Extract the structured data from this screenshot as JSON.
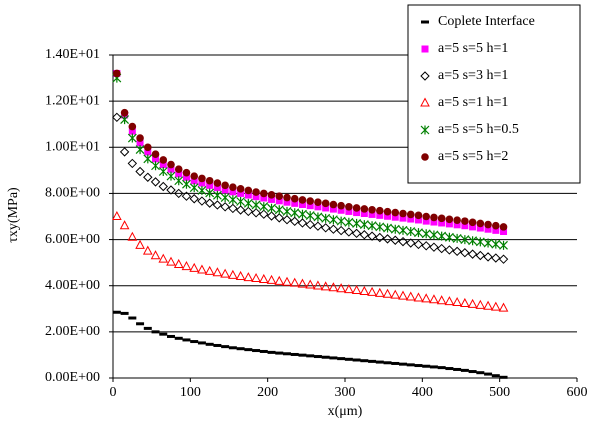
{
  "chart_data": {
    "type": "scatter",
    "y_label": "τxy(MPa)",
    "x_label": "x(μm)",
    "xlim": [
      0,
      600
    ],
    "xticks": [
      0,
      100,
      200,
      300,
      400,
      500,
      600
    ],
    "ylim": [
      0,
      14
    ],
    "yticks": [
      {
        "value": 0,
        "label": "0.00E+00"
      },
      {
        "value": 2,
        "label": "2.00E+00"
      },
      {
        "value": 4,
        "label": "4.00E+00"
      },
      {
        "value": 6,
        "label": "6.00E+00"
      },
      {
        "value": 8,
        "label": "8.00E+00"
      },
      {
        "value": 10,
        "label": "1.00E+01"
      },
      {
        "value": 12,
        "label": "1.20E+01"
      },
      {
        "value": 14,
        "label": "1.40E+01"
      }
    ],
    "grid": true,
    "legend": "top-right",
    "x": [
      5,
      15,
      25,
      35,
      45,
      55,
      65,
      75,
      85,
      95,
      105,
      115,
      125,
      135,
      145,
      155,
      165,
      175,
      185,
      195,
      205,
      215,
      225,
      235,
      245,
      255,
      265,
      275,
      285,
      295,
      305,
      315,
      325,
      335,
      345,
      355,
      365,
      375,
      385,
      395,
      405,
      415,
      425,
      435,
      445,
      455,
      465,
      475,
      485,
      495,
      505
    ],
    "series": [
      {
        "name": "Coplete Interface",
        "color": "#000000",
        "marker": "dash",
        "values": [
          2.85,
          2.8,
          2.6,
          2.35,
          2.15,
          2.0,
          1.9,
          1.8,
          1.72,
          1.65,
          1.58,
          1.52,
          1.46,
          1.41,
          1.36,
          1.31,
          1.27,
          1.23,
          1.19,
          1.15,
          1.11,
          1.08,
          1.05,
          1.02,
          0.99,
          0.96,
          0.93,
          0.9,
          0.87,
          0.84,
          0.81,
          0.78,
          0.75,
          0.72,
          0.69,
          0.66,
          0.63,
          0.6,
          0.57,
          0.54,
          0.51,
          0.48,
          0.45,
          0.41,
          0.37,
          0.33,
          0.28,
          0.23,
          0.17,
          0.1,
          0.03
        ]
      },
      {
        "name": "a=5 s=5 h=1",
        "color": "#ff00ff",
        "marker": "square",
        "values": [
          13.2,
          11.4,
          10.7,
          10.2,
          9.8,
          9.5,
          9.25,
          9.05,
          8.85,
          8.7,
          8.55,
          8.45,
          8.35,
          8.25,
          8.15,
          8.07,
          8.0,
          7.93,
          7.86,
          7.8,
          7.74,
          7.68,
          7.62,
          7.57,
          7.52,
          7.47,
          7.42,
          7.37,
          7.32,
          7.27,
          7.22,
          7.17,
          7.13,
          7.09,
          7.05,
          7.01,
          6.97,
          6.93,
          6.89,
          6.85,
          6.8,
          6.76,
          6.72,
          6.68,
          6.64,
          6.6,
          6.55,
          6.5,
          6.45,
          6.4,
          6.35
        ]
      },
      {
        "name": "a=5 s=3 h=1",
        "color": "#000000",
        "marker": "diamond",
        "values": [
          11.3,
          9.8,
          9.3,
          8.95,
          8.7,
          8.5,
          8.3,
          8.15,
          8.0,
          7.88,
          7.77,
          7.67,
          7.58,
          7.5,
          7.42,
          7.35,
          7.28,
          7.22,
          7.16,
          7.1,
          7.02,
          6.94,
          6.86,
          6.79,
          6.72,
          6.65,
          6.58,
          6.51,
          6.45,
          6.39,
          6.33,
          6.27,
          6.21,
          6.15,
          6.09,
          6.03,
          5.97,
          5.91,
          5.85,
          5.79,
          5.73,
          5.67,
          5.61,
          5.55,
          5.49,
          5.43,
          5.37,
          5.31,
          5.25,
          5.2,
          5.15
        ]
      },
      {
        "name": "a=5 s=1 h=1",
        "color": "#ff0000",
        "marker": "triangle",
        "values": [
          7.0,
          6.6,
          6.1,
          5.75,
          5.5,
          5.3,
          5.15,
          5.02,
          4.92,
          4.83,
          4.75,
          4.68,
          4.62,
          4.56,
          4.5,
          4.45,
          4.4,
          4.35,
          4.31,
          4.27,
          4.23,
          4.19,
          4.15,
          4.11,
          4.07,
          4.03,
          3.99,
          3.95,
          3.91,
          3.87,
          3.83,
          3.79,
          3.75,
          3.71,
          3.67,
          3.63,
          3.59,
          3.55,
          3.51,
          3.47,
          3.43,
          3.39,
          3.35,
          3.31,
          3.27,
          3.23,
          3.19,
          3.15,
          3.11,
          3.07,
          3.03
        ]
      },
      {
        "name": "a=5 s=5 h=0.5",
        "color": "#008000",
        "marker": "asterisk",
        "values": [
          13.0,
          11.2,
          10.4,
          9.9,
          9.5,
          9.2,
          8.95,
          8.75,
          8.55,
          8.4,
          8.25,
          8.13,
          8.02,
          7.92,
          7.82,
          7.73,
          7.65,
          7.57,
          7.5,
          7.43,
          7.36,
          7.29,
          7.22,
          7.16,
          7.1,
          7.04,
          6.98,
          6.92,
          6.86,
          6.8,
          6.75,
          6.7,
          6.65,
          6.6,
          6.55,
          6.5,
          6.45,
          6.4,
          6.35,
          6.3,
          6.25,
          6.2,
          6.15,
          6.1,
          6.05,
          6.0,
          5.95,
          5.9,
          5.85,
          5.8,
          5.75
        ]
      },
      {
        "name": "a=5 s=5 h=2",
        "color": "#800000",
        "marker": "circle",
        "values": [
          13.2,
          11.5,
          10.9,
          10.4,
          10.0,
          9.7,
          9.45,
          9.25,
          9.05,
          8.9,
          8.75,
          8.65,
          8.55,
          8.45,
          8.35,
          8.27,
          8.2,
          8.13,
          8.06,
          8.0,
          7.94,
          7.88,
          7.82,
          7.77,
          7.72,
          7.67,
          7.62,
          7.57,
          7.52,
          7.47,
          7.42,
          7.37,
          7.33,
          7.29,
          7.25,
          7.21,
          7.17,
          7.13,
          7.09,
          7.05,
          7.0,
          6.96,
          6.92,
          6.88,
          6.84,
          6.8,
          6.75,
          6.7,
          6.65,
          6.6,
          6.55
        ]
      }
    ]
  }
}
